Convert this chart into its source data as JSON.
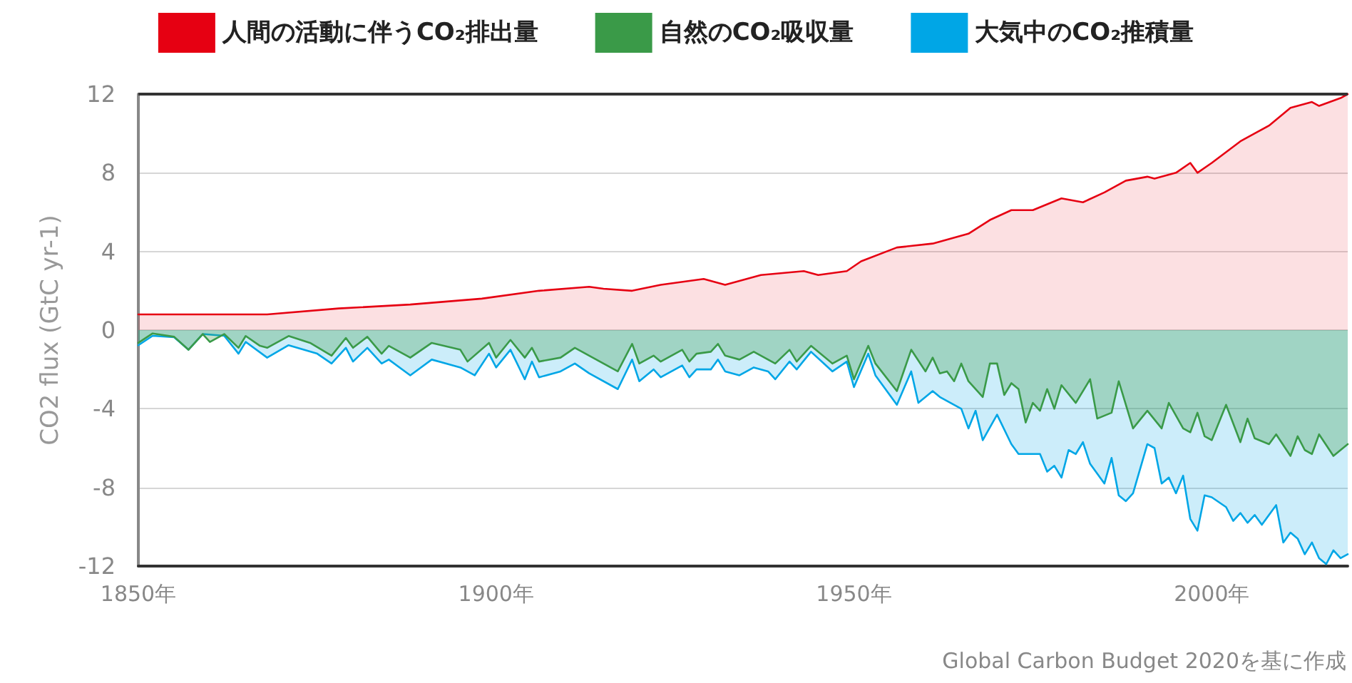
{
  "chart_data": {
    "type": "area",
    "ylabel": "CO2 flux (GtC yr-1)",
    "annotations": [
      "Global Carbon Budget 2020を基に作成"
    ],
    "xlim": [
      1850,
      2019
    ],
    "xticks": [
      {
        "value": 1850,
        "label": "1850年"
      },
      {
        "value": 1900,
        "label": "1900年"
      },
      {
        "value": 1950,
        "label": "1950年"
      },
      {
        "value": 2000,
        "label": "2000年"
      }
    ],
    "ylim": [
      -12,
      12
    ],
    "yticks": [
      -12,
      -8,
      -4,
      0,
      4,
      8,
      12
    ],
    "grid": "y",
    "legend": "top",
    "line_style": "solid",
    "marker": "none",
    "series": [
      {
        "name": "大気中のCO₂推積量",
        "color": "#00a6e6",
        "x": [
          1850,
          1852,
          1855,
          1857,
          1859,
          1862,
          1864,
          1865,
          1868,
          1871,
          1875,
          1877,
          1879,
          1880,
          1882,
          1884,
          1885,
          1888,
          1891,
          1895,
          1897,
          1899,
          1900,
          1902,
          1904,
          1905,
          1906,
          1909,
          1911,
          1913,
          1917,
          1919,
          1920,
          1922,
          1923,
          1926,
          1927,
          1928,
          1930,
          1931,
          1932,
          1934,
          1936,
          1938,
          1939,
          1941,
          1942,
          1944,
          1947,
          1949,
          1950,
          1952,
          1953,
          1956,
          1958,
          1959,
          1961,
          1962,
          1965,
          1966,
          1967,
          1968,
          1970,
          1972,
          1973,
          1976,
          1977,
          1978,
          1979,
          1980,
          1981,
          1982,
          1983,
          1985,
          1986,
          1987,
          1988,
          1989,
          1991,
          1992,
          1993,
          1994,
          1995,
          1996,
          1997,
          1998,
          1999,
          2000,
          2002,
          2003,
          2004,
          2005,
          2006,
          2007,
          2009,
          2010,
          2011,
          2012,
          2013,
          2014,
          2015,
          2016,
          2017,
          2018,
          2019
        ],
        "values": [
          -0.77,
          -0.29,
          -0.36,
          -1.0,
          -0.2,
          -0.29,
          -1.2,
          -0.6,
          -1.4,
          -0.77,
          -1.2,
          -1.7,
          -0.9,
          -1.6,
          -0.9,
          -1.7,
          -1.5,
          -2.3,
          -1.5,
          -1.9,
          -2.3,
          -1.2,
          -1.9,
          -1.0,
          -2.5,
          -1.6,
          -2.4,
          -2.1,
          -1.7,
          -2.2,
          -3.0,
          -1.5,
          -2.6,
          -2.0,
          -2.4,
          -1.8,
          -2.4,
          -2.0,
          -2.0,
          -1.5,
          -2.1,
          -2.3,
          -1.9,
          -2.1,
          -2.5,
          -1.6,
          -2.0,
          -1.1,
          -2.1,
          -1.6,
          -2.9,
          -1.2,
          -2.3,
          -3.8,
          -2.1,
          -3.7,
          -3.1,
          -3.4,
          -4.0,
          -5.0,
          -4.1,
          -5.6,
          -4.3,
          -5.8,
          -6.3,
          -6.3,
          -7.2,
          -6.9,
          -7.5,
          -6.1,
          -6.3,
          -5.7,
          -6.8,
          -7.8,
          -6.5,
          -8.4,
          -8.7,
          -8.3,
          -5.8,
          -6.0,
          -7.8,
          -7.5,
          -8.3,
          -7.4,
          -9.6,
          -10.2,
          -8.4,
          -8.5,
          -9.0,
          -9.7,
          -9.3,
          -9.8,
          -9.4,
          -9.9,
          -8.9,
          -10.8,
          -10.3,
          -10.6,
          -11.4,
          -10.8,
          -11.6,
          -11.9,
          -11.2,
          -11.6,
          -11.4
        ]
      },
      {
        "name": "自然のCO₂吸収量",
        "color": "#3a9a48",
        "x": [
          1850,
          1852,
          1855,
          1857,
          1859,
          1860,
          1862,
          1864,
          1865,
          1867,
          1868,
          1871,
          1874,
          1877,
          1879,
          1880,
          1882,
          1884,
          1885,
          1888,
          1891,
          1895,
          1896,
          1899,
          1900,
          1902,
          1904,
          1905,
          1906,
          1909,
          1911,
          1913,
          1917,
          1919,
          1920,
          1922,
          1923,
          1926,
          1927,
          1928,
          1930,
          1931,
          1932,
          1934,
          1936,
          1939,
          1941,
          1942,
          1944,
          1947,
          1949,
          1950,
          1952,
          1953,
          1956,
          1958,
          1960,
          1961,
          1962,
          1963,
          1964,
          1965,
          1966,
          1968,
          1969,
          1970,
          1971,
          1972,
          1973,
          1974,
          1975,
          1976,
          1977,
          1978,
          1979,
          1981,
          1983,
          1984,
          1986,
          1987,
          1989,
          1991,
          1993,
          1994,
          1996,
          1997,
          1998,
          1999,
          2000,
          2002,
          2004,
          2005,
          2006,
          2008,
          2009,
          2011,
          2012,
          2013,
          2014,
          2015,
          2017,
          2019
        ],
        "values": [
          -0.65,
          -0.17,
          -0.34,
          -1.0,
          -0.2,
          -0.6,
          -0.2,
          -0.9,
          -0.3,
          -0.8,
          -0.9,
          -0.3,
          -0.65,
          -1.3,
          -0.4,
          -0.9,
          -0.34,
          -1.2,
          -0.8,
          -1.4,
          -0.65,
          -1.0,
          -1.6,
          -0.65,
          -1.4,
          -0.5,
          -1.4,
          -0.9,
          -1.6,
          -1.4,
          -0.9,
          -1.3,
          -2.1,
          -0.7,
          -1.7,
          -1.3,
          -1.6,
          -1.0,
          -1.6,
          -1.2,
          -1.1,
          -0.7,
          -1.3,
          -1.5,
          -1.1,
          -1.7,
          -1.0,
          -1.6,
          -0.8,
          -1.7,
          -1.3,
          -2.5,
          -0.8,
          -1.7,
          -3.1,
          -1.0,
          -2.1,
          -1.4,
          -2.2,
          -2.1,
          -2.6,
          -1.7,
          -2.6,
          -3.4,
          -1.7,
          -1.7,
          -3.3,
          -2.7,
          -3.0,
          -4.7,
          -3.7,
          -4.1,
          -3.0,
          -4.0,
          -2.8,
          -3.7,
          -2.5,
          -4.5,
          -4.2,
          -2.6,
          -5.0,
          -4.1,
          -5.0,
          -3.7,
          -5.0,
          -5.2,
          -4.2,
          -5.4,
          -5.6,
          -3.8,
          -5.7,
          -4.5,
          -5.5,
          -5.8,
          -5.3,
          -6.4,
          -5.4,
          -6.1,
          -6.3,
          -5.3,
          -6.4,
          -5.8
        ]
      },
      {
        "name": "人間の活動に伴うCO₂排出量",
        "color": "#e60012",
        "x": [
          1850,
          1868,
          1878,
          1888,
          1898,
          1906,
          1913,
          1915,
          1919,
          1923,
          1929,
          1932,
          1937,
          1943,
          1945,
          1949,
          1951,
          1956,
          1961,
          1966,
          1969,
          1972,
          1975,
          1979,
          1982,
          1985,
          1988,
          1991,
          1992,
          1995,
          1997,
          1998,
          2000,
          2004,
          2006,
          2008,
          2011,
          2014,
          2015,
          2018,
          2019
        ],
        "values": [
          0.8,
          0.8,
          1.1,
          1.3,
          1.6,
          2.0,
          2.2,
          2.1,
          2.0,
          2.3,
          2.6,
          2.3,
          2.8,
          3.0,
          2.8,
          3.0,
          3.5,
          4.2,
          4.4,
          4.9,
          5.6,
          6.1,
          6.1,
          6.7,
          6.5,
          7.0,
          7.6,
          7.8,
          7.7,
          8.0,
          8.5,
          8.0,
          8.5,
          9.6,
          10.0,
          10.4,
          11.3,
          11.6,
          11.4,
          11.8,
          12.0
        ]
      }
    ]
  }
}
